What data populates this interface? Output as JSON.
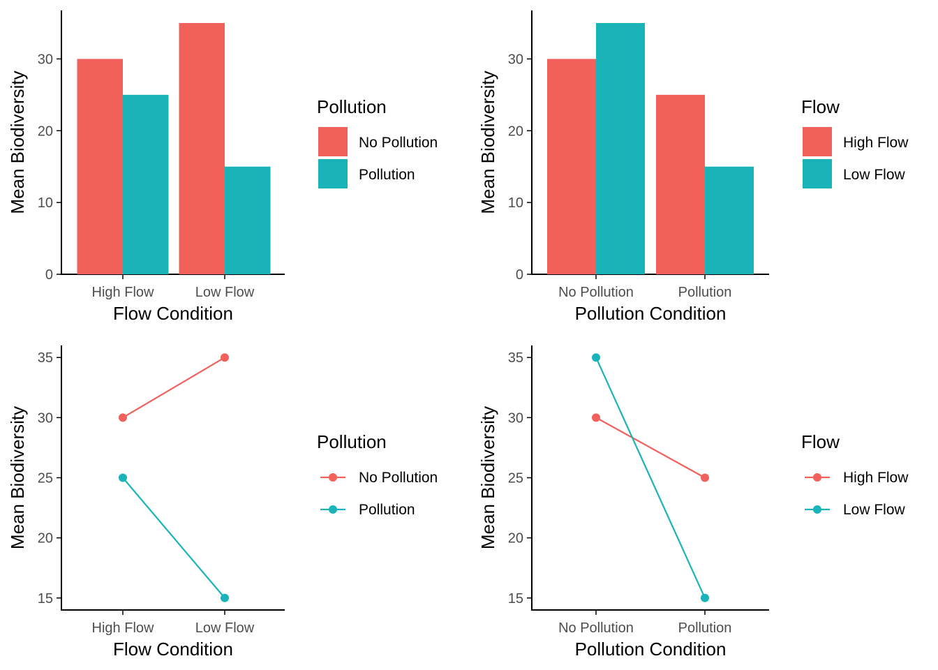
{
  "colors": {
    "red": "#f2605c",
    "teal": "#19b3b8",
    "axis": "#000000",
    "tick_text": "#4d4d4d"
  },
  "chart_data": [
    {
      "type": "bar",
      "panel": "top-left",
      "xlabel": "Flow Condition",
      "ylabel": "Mean Biodiversity",
      "categories": [
        "High Flow",
        "Low Flow"
      ],
      "series": [
        {
          "name": "No Pollution",
          "color": "#f2605c",
          "values": [
            30,
            35
          ]
        },
        {
          "name": "Pollution",
          "color": "#19b3b8",
          "values": [
            25,
            15
          ]
        }
      ],
      "ylim": [
        0,
        36.75
      ],
      "yticks": [
        0,
        10,
        20,
        30
      ],
      "legend_title": "Pollution",
      "legend_position": "right",
      "grid": false
    },
    {
      "type": "bar",
      "panel": "top-right",
      "xlabel": "Pollution Condition",
      "ylabel": "Mean Biodiversity",
      "categories": [
        "No Pollution",
        "Pollution"
      ],
      "series": [
        {
          "name": "High Flow",
          "color": "#f2605c",
          "values": [
            30,
            25
          ]
        },
        {
          "name": "Low Flow",
          "color": "#19b3b8",
          "values": [
            35,
            15
          ]
        }
      ],
      "ylim": [
        0,
        36.75
      ],
      "yticks": [
        0,
        10,
        20,
        30
      ],
      "legend_title": "Flow",
      "legend_position": "right",
      "grid": false
    },
    {
      "type": "line",
      "panel": "bottom-left",
      "xlabel": "Flow Condition",
      "ylabel": "Mean Biodiversity",
      "categories": [
        "High Flow",
        "Low Flow"
      ],
      "series": [
        {
          "name": "No Pollution",
          "color": "#f2605c",
          "values": [
            30,
            35
          ]
        },
        {
          "name": "Pollution",
          "color": "#19b3b8",
          "values": [
            25,
            15
          ]
        }
      ],
      "ylim": [
        14,
        36
      ],
      "yticks": [
        15,
        20,
        25,
        30,
        35
      ],
      "legend_title": "Pollution",
      "legend_position": "right",
      "grid": false
    },
    {
      "type": "line",
      "panel": "bottom-right",
      "xlabel": "Pollution Condition",
      "ylabel": "Mean Biodiversity",
      "categories": [
        "No Pollution",
        "Pollution"
      ],
      "series": [
        {
          "name": "High Flow",
          "color": "#f2605c",
          "values": [
            30,
            25
          ]
        },
        {
          "name": "Low Flow",
          "color": "#19b3b8",
          "values": [
            35,
            15
          ]
        }
      ],
      "ylim": [
        14,
        36
      ],
      "yticks": [
        15,
        20,
        25,
        30,
        35
      ],
      "legend_title": "Flow",
      "legend_position": "right",
      "grid": false
    }
  ]
}
